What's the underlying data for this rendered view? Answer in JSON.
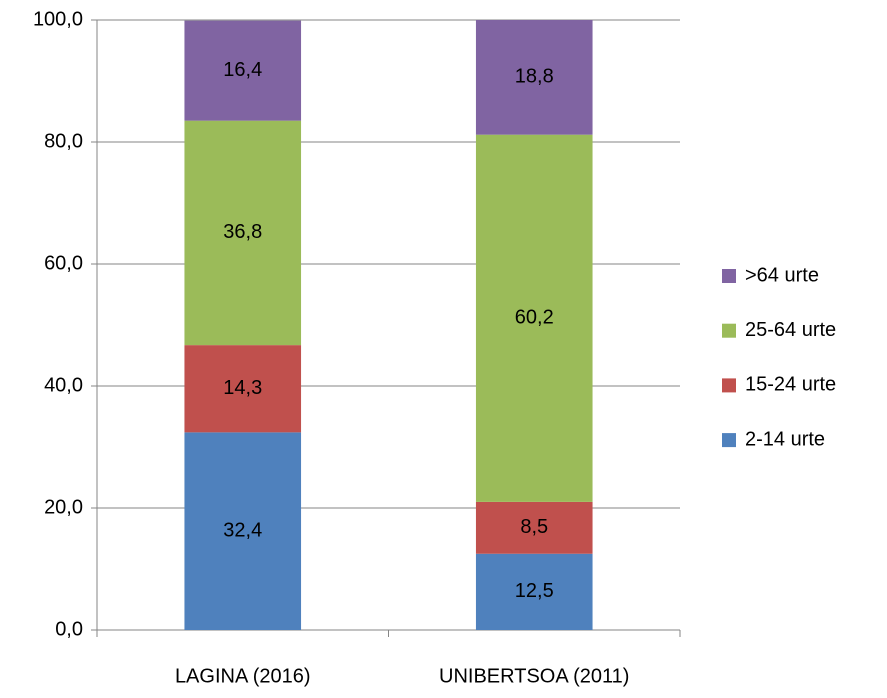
{
  "chart_data": {
    "type": "stacked_bar",
    "categories": [
      "LAGINA (2016)",
      "UNIBERTSOA (2011)"
    ],
    "series": [
      {
        "name": "2-14 urte",
        "color": "#4f81bd",
        "values": [
          32.4,
          12.5
        ],
        "value_labels": [
          "32,4",
          "12,5"
        ]
      },
      {
        "name": "15-24 urte",
        "color": "#c0504d",
        "values": [
          14.3,
          8.5
        ],
        "value_labels": [
          "14,3",
          "8,5"
        ]
      },
      {
        "name": "25-64 urte",
        "color": "#9bbb59",
        "values": [
          36.8,
          60.2
        ],
        "value_labels": [
          "36,8",
          "60,2"
        ]
      },
      {
        "name": ">64 urte",
        "color": "#8064a2",
        "values": [
          16.4,
          18.8
        ],
        "value_labels": [
          "16,4",
          "18,8"
        ]
      }
    ],
    "ylim": [
      0,
      100
    ],
    "yticks": [
      {
        "value": 0,
        "label": "0,0"
      },
      {
        "value": 20,
        "label": "20,0"
      },
      {
        "value": 40,
        "label": "40,0"
      },
      {
        "value": 60,
        "label": "60,0"
      },
      {
        "value": 80,
        "label": "80,0"
      },
      {
        "value": 100,
        "label": "100,0"
      }
    ],
    "grid": true,
    "legend": "right"
  }
}
